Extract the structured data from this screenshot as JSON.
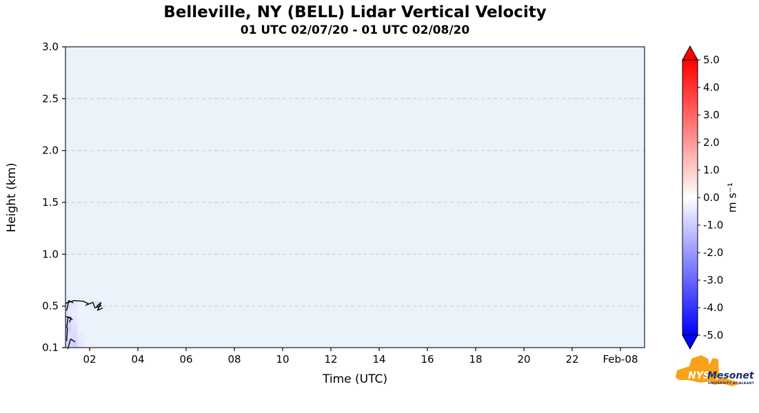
{
  "chart_data": {
    "type": "heatmap",
    "title": "Belleville, NY (BELL) Lidar Vertical Velocity",
    "subtitle": "01 UTC 02/07/20 - 01 UTC 02/08/20",
    "xlabel": "Time (UTC)",
    "ylabel": "Height (km)",
    "x_axis": {
      "range_hours": [
        1,
        25
      ],
      "ticks": [
        {
          "t": 2,
          "label": "02"
        },
        {
          "t": 4,
          "label": "04"
        },
        {
          "t": 6,
          "label": "06"
        },
        {
          "t": 8,
          "label": "08"
        },
        {
          "t": 10,
          "label": "10"
        },
        {
          "t": 12,
          "label": "12"
        },
        {
          "t": 14,
          "label": "14"
        },
        {
          "t": 16,
          "label": "16"
        },
        {
          "t": 18,
          "label": "18"
        },
        {
          "t": 20,
          "label": "20"
        },
        {
          "t": 22,
          "label": "22"
        },
        {
          "t": 24,
          "label": "Feb-08"
        }
      ]
    },
    "y_axis": {
      "range_km": [
        0.1,
        3.0
      ],
      "ticks": [
        {
          "h": 3.0,
          "label": "3.0"
        },
        {
          "h": 2.5,
          "label": "2.5"
        },
        {
          "h": 2.0,
          "label": "2.0"
        },
        {
          "h": 1.5,
          "label": "1.5"
        },
        {
          "h": 1.0,
          "label": "1.0"
        },
        {
          "h": 0.5,
          "label": "0.5"
        },
        {
          "h": 0.1,
          "label": "0.1"
        }
      ]
    },
    "colorbar": {
      "label": "m s⁻¹",
      "min": -5.0,
      "max": 5.0,
      "ticks": [
        {
          "v": 5.0,
          "label": "5.0"
        },
        {
          "v": 4.0,
          "label": "4.0"
        },
        {
          "v": 3.0,
          "label": "3.0"
        },
        {
          "v": 2.0,
          "label": "2.0"
        },
        {
          "v": 1.0,
          "label": "1.0"
        },
        {
          "v": 0.0,
          "label": "0.0"
        },
        {
          "v": -1.0,
          "label": "-1.0"
        },
        {
          "v": -2.0,
          "label": "-2.0"
        },
        {
          "v": -3.0,
          "label": "-3.0"
        },
        {
          "v": -4.0,
          "label": "-4.0"
        },
        {
          "v": -5.0,
          "label": "-5.0"
        }
      ],
      "color_positive": "#ff0000",
      "color_zero": "#ffffff",
      "color_negative": "#0000ff"
    },
    "style": {
      "plot_bg": "#eaf2fa",
      "grid_color": "#c3ccd6",
      "frame_color": "#1a1a2e",
      "barb_color": "#000000"
    },
    "cell_size": {
      "dt": 0.25,
      "dh": 0.075
    },
    "cells": [
      [
        1.0,
        0.475,
        -0.7
      ],
      [
        1.25,
        0.475,
        -0.5
      ],
      [
        1.5,
        0.475,
        -0.3
      ],
      [
        2.0,
        0.475,
        -0.4
      ],
      [
        2.25,
        0.475,
        -0.6
      ],
      [
        1.0,
        0.4,
        -0.5
      ],
      [
        1.25,
        0.4,
        -0.4
      ],
      [
        1.5,
        0.4,
        -0.3
      ],
      [
        1.0,
        0.325,
        -0.8
      ],
      [
        1.25,
        0.325,
        -0.5
      ],
      [
        2.0,
        0.325,
        -0.3
      ],
      [
        1.0,
        0.25,
        -0.9
      ],
      [
        1.25,
        0.25,
        -0.6
      ],
      [
        1.0,
        0.175,
        -0.6
      ],
      [
        1.25,
        0.175,
        -0.7
      ],
      [
        1.5,
        0.175,
        -0.4
      ],
      [
        1.0,
        0.1,
        -0.8
      ],
      [
        1.25,
        0.1,
        -0.9
      ],
      [
        1.5,
        0.1,
        -0.5
      ],
      [
        1.75,
        0.1,
        -0.3
      ]
    ],
    "barbs": [
      {
        "t": 1.0,
        "h": 0.54,
        "pts": [
          [
            0,
            2
          ],
          [
            12,
            -2
          ],
          [
            26,
            -1
          ],
          [
            34,
            3
          ]
        ]
      },
      {
        "t": 1.85,
        "h": 0.51,
        "pts": [
          [
            0,
            0
          ],
          [
            10,
            -4
          ],
          [
            13,
            4
          ],
          [
            22,
            1
          ]
        ]
      },
      {
        "t": 2.3,
        "h": 0.5,
        "pts": [
          [
            0,
            0
          ],
          [
            6,
            -5
          ],
          [
            1,
            6
          ],
          [
            8,
            3
          ]
        ]
      },
      {
        "t": 1.05,
        "h": 0.46,
        "pts": [
          [
            0,
            0
          ],
          [
            3,
            -14
          ],
          [
            9,
            -11
          ]
        ]
      },
      {
        "t": 1.05,
        "h": 0.33,
        "pts": [
          [
            0,
            6
          ],
          [
            2,
            -10
          ],
          [
            8,
            -6
          ]
        ]
      },
      {
        "t": 1.05,
        "h": 0.22,
        "pts": [
          [
            0,
            8
          ],
          [
            1,
            -10
          ]
        ]
      },
      {
        "t": 1.1,
        "h": 0.13,
        "pts": [
          [
            0,
            6
          ],
          [
            4,
            -8
          ],
          [
            10,
            -4
          ]
        ]
      },
      {
        "t": 1.0,
        "h": 0.4,
        "pts": [
          [
            0,
            0
          ],
          [
            8,
            2
          ],
          [
            6,
            8
          ]
        ]
      }
    ]
  },
  "branding": {
    "org": "NYS",
    "name": "Mesonet",
    "subtext": "UNIVERSITY AT ALBANY"
  }
}
